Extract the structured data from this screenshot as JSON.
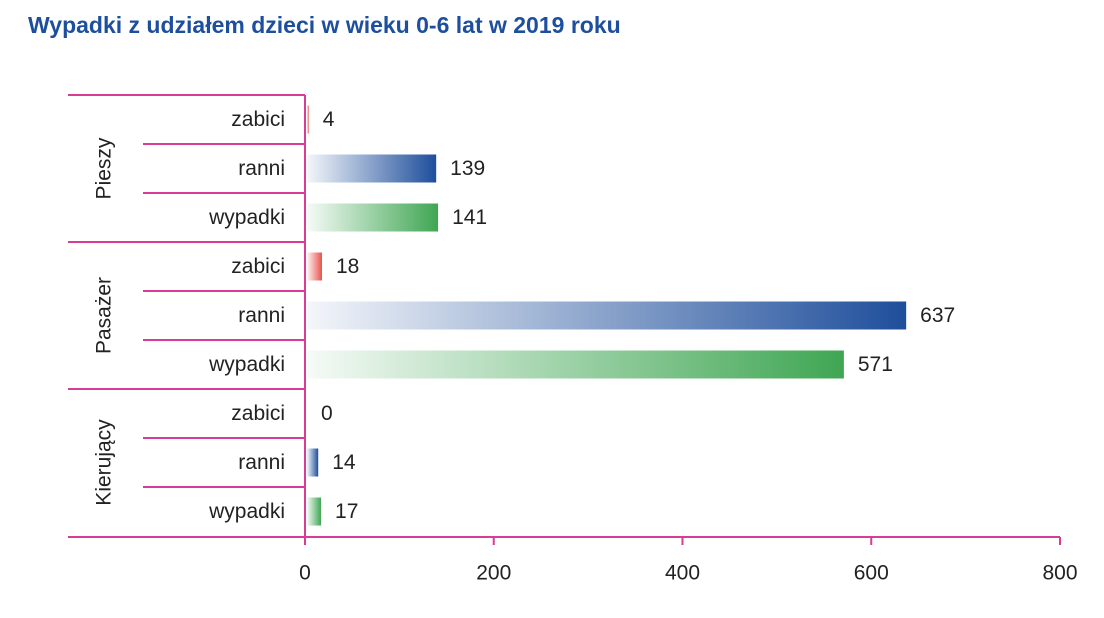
{
  "chart_data": {
    "type": "bar",
    "orientation": "horizontal",
    "title": "Wypadki z udziałem dzieci w wieku 0-6 lat w 2019 roku",
    "groups": [
      {
        "name": "Pieszy",
        "bars": [
          {
            "label": "zabici",
            "value": 4
          },
          {
            "label": "ranni",
            "value": 139
          },
          {
            "label": "wypadki",
            "value": 141
          }
        ]
      },
      {
        "name": "Pasażer",
        "bars": [
          {
            "label": "zabici",
            "value": 18
          },
          {
            "label": "ranni",
            "value": 637
          },
          {
            "label": "wypadki",
            "value": 571
          }
        ]
      },
      {
        "name": "Kierujący",
        "bars": [
          {
            "label": "zabici",
            "value": 0
          },
          {
            "label": "ranni",
            "value": 14
          },
          {
            "label": "wypadki",
            "value": 17
          }
        ]
      }
    ],
    "xlim": [
      0,
      800
    ],
    "xticks": [
      0,
      200,
      400,
      600,
      800
    ],
    "grid": false,
    "colors": {
      "zabici": "#e8534a",
      "ranni": "#1e4e9b",
      "wypadki": "#3fa653",
      "axis": "#d63d96",
      "title": "#1d4f9e"
    }
  }
}
